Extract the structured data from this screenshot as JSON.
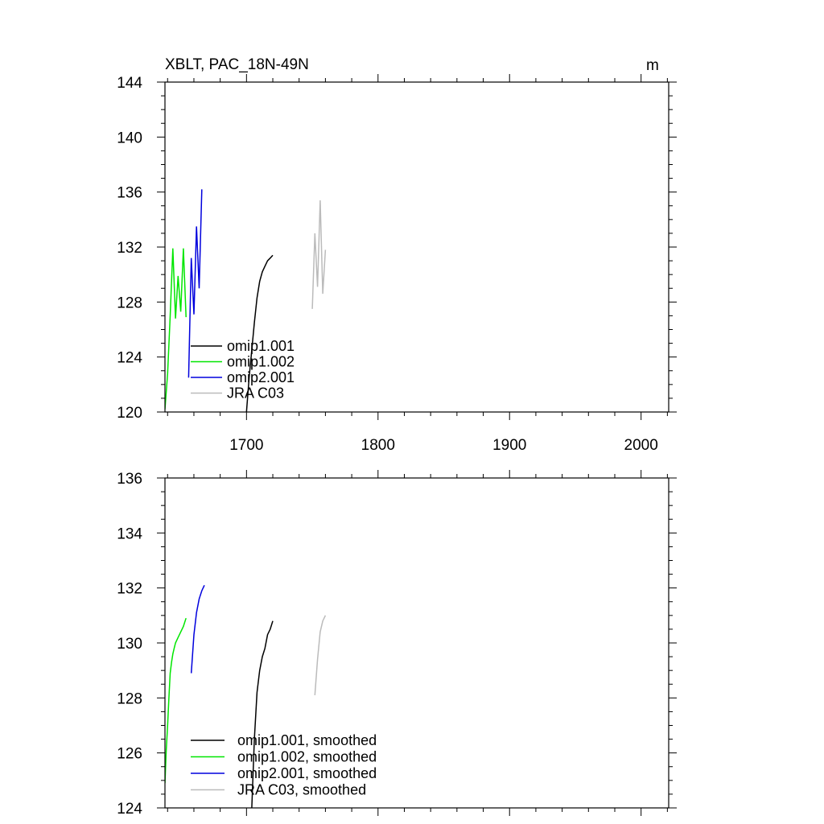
{
  "figure": {
    "title": "XBLT, PAC_18N-49N",
    "units": "m"
  },
  "colors": {
    "omip1_001": "#000000",
    "omip1_002": "#00e600",
    "omip2_001": "#0000dd",
    "jra_c03": "#bbbbbb"
  },
  "chart_data": [
    {
      "type": "line",
      "title": "XBLT, PAC_18N-49N",
      "units": "m",
      "xlim": [
        1638,
        2021
      ],
      "ylim": [
        120,
        144
      ],
      "x_ticks": [
        1700,
        1800,
        1900,
        2000
      ],
      "y_ticks": [
        120,
        124,
        128,
        132,
        136,
        140,
        144
      ],
      "grid": false,
      "legend_position": "bottom-left",
      "series": [
        {
          "name": "omip1.001",
          "color": "#000000",
          "x": [
            1700,
            1702,
            1704,
            1706,
            1708,
            1710,
            1712,
            1714,
            1716,
            1718,
            1720
          ],
          "values": [
            120,
            122.5,
            124.5,
            126.5,
            128.3,
            129.5,
            130.2,
            130.6,
            131.0,
            131.2,
            131.4
          ]
        },
        {
          "name": "omip1.002",
          "color": "#00e600",
          "x": [
            1638,
            1640,
            1642,
            1644,
            1646,
            1648,
            1650,
            1652,
            1654
          ],
          "values": [
            120.2,
            122.8,
            127.0,
            131.9,
            126.8,
            129.9,
            127.3,
            131.9,
            126.9
          ]
        },
        {
          "name": "omip2.001",
          "color": "#0000dd",
          "x": [
            1656,
            1658,
            1660,
            1662,
            1664,
            1666
          ],
          "values": [
            122.5,
            131.2,
            127.1,
            133.5,
            129.0,
            136.2
          ]
        },
        {
          "name": "JRA C03",
          "color": "#bbbbbb",
          "x": [
            1750,
            1752,
            1754,
            1756,
            1758,
            1760
          ],
          "values": [
            127.5,
            133.0,
            129.1,
            135.4,
            128.6,
            131.8
          ]
        }
      ]
    },
    {
      "type": "line",
      "title": "",
      "xlim": [
        1638,
        2021
      ],
      "ylim": [
        124,
        136
      ],
      "x_ticks": [
        1700,
        1800,
        1900,
        2000
      ],
      "y_ticks": [
        124,
        126,
        128,
        130,
        132,
        134,
        136
      ],
      "grid": false,
      "legend_position": "bottom-left",
      "series": [
        {
          "name": "omip1.001, smoothed",
          "color": "#000000",
          "x": [
            1704,
            1706,
            1708,
            1710,
            1712,
            1714,
            1716,
            1718,
            1720
          ],
          "values": [
            124.0,
            126.5,
            128.2,
            129.0,
            129.5,
            129.8,
            130.3,
            130.5,
            130.8
          ]
        },
        {
          "name": "omip1.002, smoothed",
          "color": "#00e600",
          "x": [
            1638,
            1639,
            1640,
            1641,
            1642,
            1643,
            1644,
            1645,
            1646,
            1648,
            1650,
            1652,
            1654
          ],
          "values": [
            124.9,
            126.1,
            127.0,
            128.0,
            128.9,
            129.3,
            129.6,
            129.8,
            130.0,
            130.2,
            130.4,
            130.6,
            130.9
          ]
        },
        {
          "name": "omip2.001, smoothed",
          "color": "#0000dd",
          "x": [
            1658,
            1660,
            1662,
            1664,
            1666,
            1668
          ],
          "values": [
            128.9,
            130.3,
            131.1,
            131.6,
            131.9,
            132.1
          ]
        },
        {
          "name": "JRA C03, smoothed",
          "color": "#bbbbbb",
          "x": [
            1752,
            1754,
            1756,
            1758,
            1760
          ],
          "values": [
            128.1,
            129.4,
            130.4,
            130.8,
            131.0
          ]
        }
      ]
    }
  ]
}
